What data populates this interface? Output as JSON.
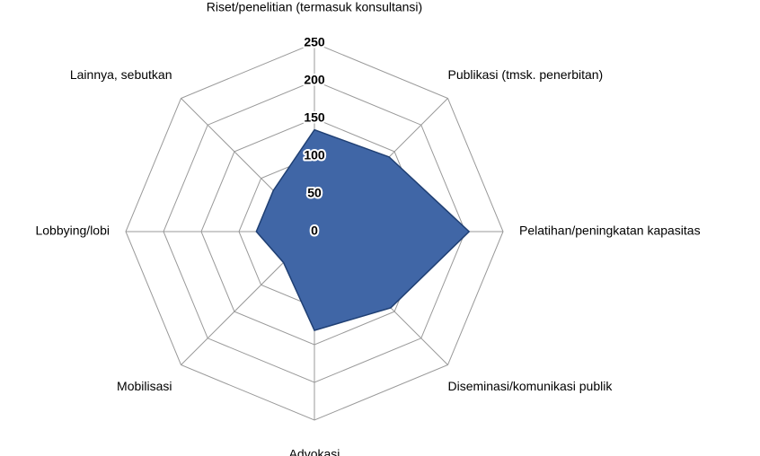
{
  "chart_data": {
    "type": "radar",
    "categories": [
      "Riset/penelitian (termasuk konsultansi)",
      "Publikasi (tmsk. penerbitan)",
      "Pelatihan/peningkatan kapasitas",
      "Diseminasi/komunikasi publik",
      "Advokasi",
      "Mobilisasi",
      "Lobbying/lobi",
      "Lainnya, sebutkan"
    ],
    "values": [
      135,
      140,
      205,
      143,
      131,
      58,
      77,
      77
    ],
    "color": "#4066a6",
    "ylim": [
      0,
      250
    ],
    "yticks": [
      0,
      50,
      100,
      150,
      200,
      250
    ],
    "grid": true
  }
}
